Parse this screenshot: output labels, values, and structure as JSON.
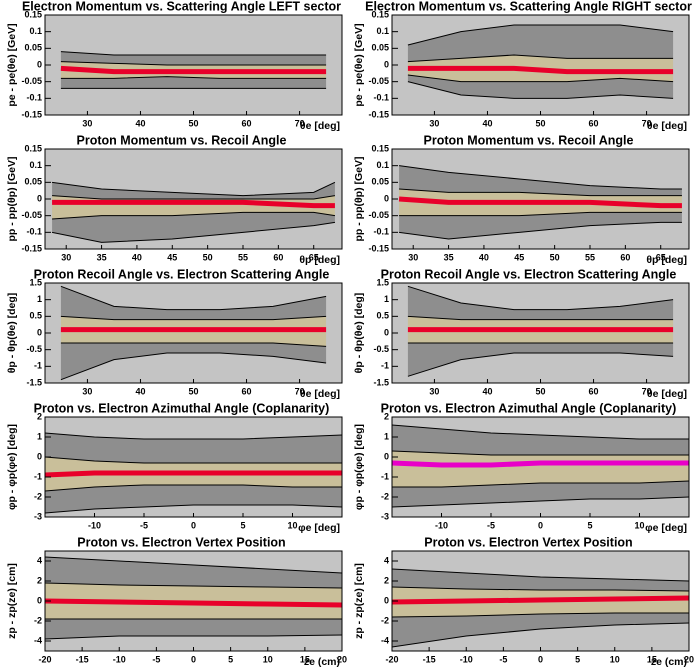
{
  "chart_data": [
    {
      "type": "histogram2d",
      "title": "Electron Momentum vs. Scattering Angle    LEFT sector",
      "x_label": "θe [deg]",
      "y_label": "pe - pe(θe) [GeV]",
      "xlim": [
        22,
        78
      ],
      "xticks": [
        30,
        40,
        50,
        60,
        70
      ],
      "ylim": [
        -0.15,
        0.15
      ],
      "yticks": [
        -0.15,
        -0.1,
        -0.05,
        0,
        0.05,
        0.1,
        0.15
      ],
      "x": [
        25,
        35,
        45,
        55,
        65,
        75
      ],
      "curves": [
        {
          "values": [
            0.04,
            0.03,
            0.03,
            0.03,
            0.03,
            0.03
          ]
        },
        {
          "values": [
            0.01,
            0.005,
            0,
            0,
            0,
            0
          ]
        },
        {
          "values": [
            -0.04,
            -0.04,
            -0.035,
            -0.04,
            -0.04,
            -0.04
          ]
        },
        {
          "values": [
            -0.07,
            -0.07,
            -0.07,
            -0.07,
            -0.07,
            -0.07
          ]
        }
      ],
      "trend": [
        -0.01,
        -0.02,
        -0.02,
        -0.02,
        -0.02,
        -0.02
      ],
      "background": "#c4c4c4",
      "band_colors": [
        "#8e8e8e",
        "#c9bf9a",
        "#8e8e8e"
      ],
      "line_color": "#000000",
      "trend_color": "#e8002a"
    },
    {
      "type": "histogram2d",
      "title": "Electron Momentum vs. Scattering Angle    RIGHT sector",
      "x_label": "θe [deg]",
      "y_label": "pe - pe(θe) [GeV]",
      "xlim": [
        22,
        78
      ],
      "xticks": [
        30,
        40,
        50,
        60,
        70
      ],
      "ylim": [
        -0.15,
        0.15
      ],
      "yticks": [
        -0.15,
        -0.1,
        -0.05,
        0,
        0.05,
        0.1,
        0.15
      ],
      "x": [
        25,
        35,
        45,
        55,
        65,
        75
      ],
      "curves": [
        {
          "values": [
            0.06,
            0.1,
            0.12,
            0.12,
            0.12,
            0.1
          ]
        },
        {
          "values": [
            0.01,
            0.02,
            0.03,
            0.02,
            0.02,
            0.02
          ]
        },
        {
          "values": [
            -0.03,
            -0.05,
            -0.05,
            -0.05,
            -0.04,
            -0.05
          ]
        },
        {
          "values": [
            -0.05,
            -0.09,
            -0.1,
            -0.1,
            -0.09,
            -0.1
          ]
        }
      ],
      "trend": [
        -0.01,
        -0.01,
        -0.01,
        -0.02,
        -0.02,
        -0.02
      ],
      "background": "#c4c4c4",
      "band_colors": [
        "#8e8e8e",
        "#c9bf9a",
        "#8e8e8e"
      ],
      "line_color": "#000000",
      "trend_color": "#e8002a"
    },
    {
      "type": "histogram2d",
      "title": "Proton Momentum vs. Recoil Angle",
      "x_label": "θp [deg]",
      "y_label": "pp - pp(θp) [GeV]",
      "xlim": [
        27,
        69
      ],
      "xticks": [
        30,
        35,
        40,
        45,
        50,
        55,
        60,
        65
      ],
      "ylim": [
        -0.15,
        0.15
      ],
      "yticks": [
        -0.15,
        -0.1,
        -0.05,
        0,
        0.05,
        0.1,
        0.15
      ],
      "x": [
        28,
        35,
        45,
        55,
        65,
        68
      ],
      "curves": [
        {
          "values": [
            0.05,
            0.03,
            0.02,
            0.01,
            0.02,
            0.05
          ]
        },
        {
          "values": [
            0.01,
            0,
            0,
            0,
            0,
            0.01
          ]
        },
        {
          "values": [
            -0.06,
            -0.05,
            -0.05,
            -0.04,
            -0.04,
            -0.05
          ]
        },
        {
          "values": [
            -0.1,
            -0.13,
            -0.12,
            -0.1,
            -0.08,
            -0.07
          ]
        }
      ],
      "trend": [
        -0.01,
        -0.01,
        -0.01,
        -0.01,
        -0.02,
        -0.02
      ],
      "background": "#c4c4c4",
      "band_colors": [
        "#8e8e8e",
        "#c9bf9a",
        "#8e8e8e"
      ],
      "line_color": "#000000",
      "trend_color": "#e8002a"
    },
    {
      "type": "histogram2d",
      "title": "Proton Momentum vs. Recoil Angle",
      "x_label": "θp [deg]",
      "y_label": "pp - pp(θp) [GeV]",
      "xlim": [
        27,
        69
      ],
      "xticks": [
        30,
        35,
        40,
        45,
        50,
        55,
        60,
        65
      ],
      "ylim": [
        -0.15,
        0.15
      ],
      "yticks": [
        -0.15,
        -0.1,
        -0.05,
        0,
        0.05,
        0.1,
        0.15
      ],
      "x": [
        28,
        35,
        45,
        55,
        65,
        68
      ],
      "curves": [
        {
          "values": [
            0.1,
            0.08,
            0.06,
            0.04,
            0.03,
            0.03
          ]
        },
        {
          "values": [
            0.03,
            0.02,
            0.02,
            0.01,
            0.01,
            0.01
          ]
        },
        {
          "values": [
            -0.05,
            -0.05,
            -0.05,
            -0.04,
            -0.04,
            -0.04
          ]
        },
        {
          "values": [
            -0.1,
            -0.12,
            -0.1,
            -0.08,
            -0.07,
            -0.07
          ]
        }
      ],
      "trend": [
        0,
        -0.01,
        -0.01,
        -0.01,
        -0.02,
        -0.02
      ],
      "background": "#c4c4c4",
      "band_colors": [
        "#8e8e8e",
        "#c9bf9a",
        "#8e8e8e"
      ],
      "line_color": "#000000",
      "trend_color": "#e8002a"
    },
    {
      "type": "histogram2d",
      "title": "Proton Recoil Angle vs. Electron Scattering Angle",
      "x_label": "θe [deg]",
      "y_label": "θp - θp(θe) [deg]",
      "xlim": [
        22,
        78
      ],
      "xticks": [
        30,
        40,
        50,
        60,
        70
      ],
      "ylim": [
        -1.5,
        1.5
      ],
      "yticks": [
        -1.5,
        -1,
        -0.5,
        0,
        0.5,
        1,
        1.5
      ],
      "x": [
        25,
        35,
        45,
        55,
        65,
        75
      ],
      "curves": [
        {
          "values": [
            1.4,
            0.8,
            0.7,
            0.7,
            0.8,
            1.1
          ]
        },
        {
          "values": [
            0.5,
            0.4,
            0.4,
            0.4,
            0.4,
            0.5
          ]
        },
        {
          "values": [
            -0.3,
            -0.3,
            -0.3,
            -0.3,
            -0.3,
            -0.4
          ]
        },
        {
          "values": [
            -1.4,
            -0.8,
            -0.6,
            -0.6,
            -0.7,
            -0.9
          ]
        }
      ],
      "trend": [
        0.1,
        0.1,
        0.1,
        0.1,
        0.1,
        0.1
      ],
      "background": "#c4c4c4",
      "band_colors": [
        "#8e8e8e",
        "#c9bf9a",
        "#8e8e8e"
      ],
      "line_color": "#000000",
      "trend_color": "#e8002a"
    },
    {
      "type": "histogram2d",
      "title": "Proton Recoil Angle vs. Electron Scattering Angle",
      "x_label": "θe [deg]",
      "y_label": "θp - θp(θe) [deg]",
      "xlim": [
        22,
        78
      ],
      "xticks": [
        30,
        40,
        50,
        60,
        70
      ],
      "ylim": [
        -1.5,
        1.5
      ],
      "yticks": [
        -1.5,
        -1,
        -0.5,
        0,
        0.5,
        1,
        1.5
      ],
      "x": [
        25,
        35,
        45,
        55,
        65,
        75
      ],
      "curves": [
        {
          "values": [
            1.4,
            0.9,
            0.7,
            0.7,
            0.8,
            1.0
          ]
        },
        {
          "values": [
            0.5,
            0.4,
            0.4,
            0.4,
            0.4,
            0.4
          ]
        },
        {
          "values": [
            -0.3,
            -0.3,
            -0.3,
            -0.3,
            -0.3,
            -0.3
          ]
        },
        {
          "values": [
            -1.3,
            -0.8,
            -0.6,
            -0.6,
            -0.6,
            -0.7
          ]
        }
      ],
      "trend": [
        0.1,
        0.1,
        0.1,
        0.1,
        0.1,
        0.1
      ],
      "background": "#c4c4c4",
      "band_colors": [
        "#8e8e8e",
        "#c9bf9a",
        "#8e8e8e"
      ],
      "line_color": "#000000",
      "trend_color": "#e8002a"
    },
    {
      "type": "histogram2d",
      "title": "Proton vs. Electron Azimuthal Angle (Coplanarity)",
      "x_label": "φe [deg]",
      "y_label": "φp - φp(φe) [deg]",
      "xlim": [
        -15,
        15
      ],
      "xticks": [
        -10,
        -5,
        0,
        5,
        10
      ],
      "ylim": [
        -3,
        2
      ],
      "yticks": [
        -3,
        -2,
        -1,
        0,
        1,
        2
      ],
      "x": [
        -15,
        -10,
        -5,
        0,
        5,
        10,
        15
      ],
      "curves": [
        {
          "values": [
            1.2,
            1.0,
            0.9,
            0.9,
            0.9,
            1.0,
            1.1
          ]
        },
        {
          "values": [
            0,
            -0.2,
            -0.3,
            -0.3,
            -0.3,
            -0.3,
            -0.3
          ]
        },
        {
          "values": [
            -1.7,
            -1.5,
            -1.4,
            -1.4,
            -1.4,
            -1.5,
            -1.5
          ]
        },
        {
          "values": [
            -2.8,
            -2.6,
            -2.5,
            -2.4,
            -2.4,
            -2.4,
            -2.5
          ]
        }
      ],
      "trend": [
        -0.9,
        -0.8,
        -0.8,
        -0.8,
        -0.8,
        -0.8,
        -0.8
      ],
      "background": "#c4c4c4",
      "band_colors": [
        "#8e8e8e",
        "#c9bf9a",
        "#8e8e8e"
      ],
      "line_color": "#000000",
      "trend_color": "#e8002a"
    },
    {
      "type": "histogram2d",
      "title": "Proton vs. Electron Azimuthal Angle (Coplanarity)",
      "x_label": "φe [deg]",
      "y_label": "φp - φp(φe) [deg]",
      "xlim": [
        -15,
        15
      ],
      "xticks": [
        -10,
        -5,
        0,
        5,
        10
      ],
      "ylim": [
        -3,
        2
      ],
      "yticks": [
        -3,
        -2,
        -1,
        0,
        1,
        2
      ],
      "x": [
        -15,
        -10,
        -5,
        0,
        5,
        10,
        15
      ],
      "curves": [
        {
          "values": [
            1.6,
            1.4,
            1.2,
            1.1,
            1.0,
            0.9,
            0.9
          ]
        },
        {
          "values": [
            0.3,
            0.2,
            0.1,
            0.1,
            0.1,
            0.1,
            0.1
          ]
        },
        {
          "values": [
            -1.5,
            -1.5,
            -1.4,
            -1.3,
            -1.3,
            -1.3,
            -1.2
          ]
        },
        {
          "values": [
            -2.5,
            -2.4,
            -2.3,
            -2.2,
            -2.1,
            -2.1,
            -2.0
          ]
        }
      ],
      "trend": [
        -0.3,
        -0.4,
        -0.4,
        -0.3,
        -0.3,
        -0.3,
        -0.3
      ],
      "background": "#c4c4c4",
      "band_colors": [
        "#8e8e8e",
        "#c9bf9a",
        "#8e8e8e"
      ],
      "line_color": "#000000",
      "trend_color": "#e800c8"
    },
    {
      "type": "histogram2d",
      "title": "Proton vs. Electron Vertex Position",
      "x_label": "ze (cm)",
      "y_label": "zp - zp(ze) [cm]",
      "xlim": [
        -20,
        20
      ],
      "xticks": [
        -20,
        -15,
        -10,
        -5,
        0,
        5,
        10,
        15,
        20
      ],
      "ylim": [
        -5,
        5
      ],
      "yticks": [
        -4,
        -2,
        0,
        2,
        4
      ],
      "x": [
        -20,
        -10,
        0,
        10,
        20
      ],
      "curves": [
        {
          "values": [
            4.4,
            4,
            3.6,
            3.2,
            2.8
          ]
        },
        {
          "values": [
            1.8,
            1.6,
            1.5,
            1.4,
            1.3
          ]
        },
        {
          "values": [
            -1.8,
            -1.8,
            -1.8,
            -1.8,
            -1.8
          ]
        },
        {
          "values": [
            -3.8,
            -3.5,
            -3.5,
            -3.5,
            -3.4
          ]
        }
      ],
      "trend": [
        0,
        -0.1,
        -0.2,
        -0.3,
        -0.4
      ],
      "background": "#c4c4c4",
      "band_colors": [
        "#8e8e8e",
        "#c9bf9a",
        "#8e8e8e"
      ],
      "line_color": "#000000",
      "trend_color": "#e8002a"
    },
    {
      "type": "histogram2d",
      "title": "Proton vs. Electron Vertex Position",
      "x_label": "ze (cm)",
      "y_label": "zp - zp(ze) [cm]",
      "xlim": [
        -20,
        20
      ],
      "xticks": [
        -20,
        -15,
        -10,
        -5,
        0,
        5,
        10,
        15,
        20
      ],
      "ylim": [
        -5,
        5
      ],
      "yticks": [
        -4,
        -2,
        0,
        2,
        4
      ],
      "x": [
        -20,
        -10,
        0,
        10,
        20
      ],
      "curves": [
        {
          "values": [
            3.2,
            2.8,
            2.4,
            2.2,
            2.0
          ]
        },
        {
          "values": [
            1.4,
            1.2,
            1.1,
            1.1,
            1.0
          ]
        },
        {
          "values": [
            -1.6,
            -1.5,
            -1.3,
            -1.2,
            -1.2
          ]
        },
        {
          "values": [
            -4.6,
            -3.5,
            -2.8,
            -2.4,
            -2.2
          ]
        }
      ],
      "trend": [
        -0.1,
        0,
        0.1,
        0.2,
        0.3
      ],
      "background": "#c4c4c4",
      "band_colors": [
        "#8e8e8e",
        "#c9bf9a",
        "#8e8e8e"
      ],
      "line_color": "#000000",
      "trend_color": "#e8002a"
    }
  ]
}
